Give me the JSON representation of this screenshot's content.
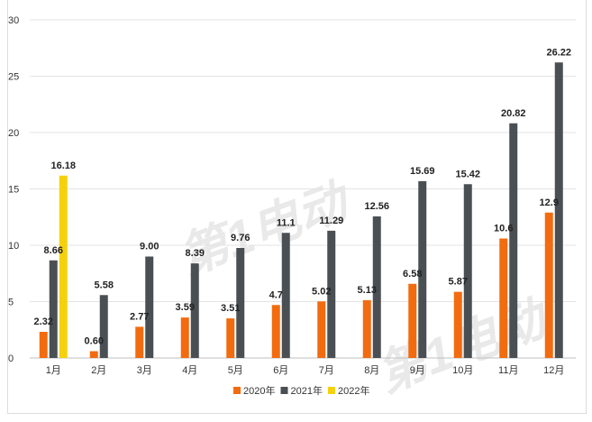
{
  "colors": {
    "s2020": "#F26B0F",
    "s2021": "#4A4F53",
    "s2022": "#F5D10C",
    "grid": "#e3e3e3",
    "axis": "#bfbfbf"
  },
  "chart_data": {
    "type": "bar",
    "title": "",
    "xlabel": "",
    "ylabel": "",
    "ylim": [
      0,
      30
    ],
    "yticks": [
      "0",
      "5",
      "10",
      "15",
      "20",
      "25",
      "30"
    ],
    "categories": [
      "1月",
      "2月",
      "3月",
      "4月",
      "5月",
      "6月",
      "7月",
      "8月",
      "9月",
      "10月",
      "11月",
      "12月"
    ],
    "series": [
      {
        "name": "2020年",
        "color": "#F26B0F",
        "values": [
          2.32,
          0.6,
          2.77,
          3.59,
          3.51,
          4.7,
          5.02,
          5.13,
          6.58,
          5.87,
          10.6,
          12.9
        ],
        "labels": [
          "2.32",
          "0.60",
          "2.77",
          "3.59",
          "3.51",
          "4.7",
          "5.02",
          "5.13",
          "6.58",
          "5.87",
          "10.6",
          "12.9"
        ]
      },
      {
        "name": "2021年",
        "color": "#4A4F53",
        "values": [
          8.66,
          5.58,
          9.0,
          8.39,
          9.76,
          11.1,
          11.29,
          12.56,
          15.69,
          15.42,
          20.82,
          26.22
        ],
        "labels": [
          "8.66",
          "5.58",
          "9.00",
          "8.39",
          "9.76",
          "11.1",
          "11.29",
          "12.56",
          "15.69",
          "15.42",
          "20.82",
          "26.22"
        ]
      },
      {
        "name": "2022年",
        "color": "#F5D10C",
        "values": [
          16.18,
          null,
          null,
          null,
          null,
          null,
          null,
          null,
          null,
          null,
          null,
          null
        ],
        "labels": [
          "16.18",
          "",
          "",
          "",
          "",
          "",
          "",
          "",
          "",
          "",
          "",
          ""
        ]
      }
    ],
    "grid": true,
    "legend": "bottom-center"
  },
  "watermark": {
    "text": "第1电动"
  }
}
